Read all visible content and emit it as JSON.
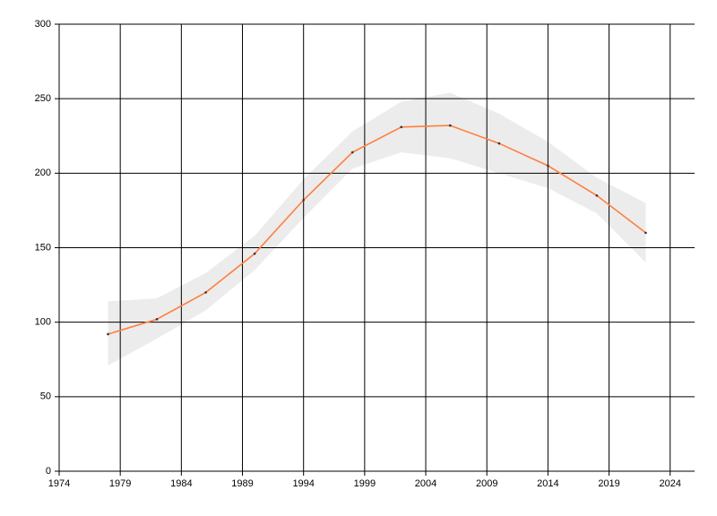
{
  "chart_data": {
    "type": "line",
    "x": [
      1978,
      1982,
      1986,
      1990,
      1994,
      1998,
      2002,
      2006,
      2010,
      2014,
      2018,
      2022
    ],
    "series": [
      {
        "color": "#ff7f3f",
        "values": [
          92,
          102,
          120,
          146,
          182,
          214,
          231,
          232,
          220,
          205,
          185,
          160
        ],
        "lower": [
          71,
          89,
          108,
          135,
          170,
          203,
          214,
          210,
          200,
          190,
          173,
          140
        ],
        "upper": [
          114,
          116,
          133,
          158,
          196,
          228,
          248,
          254,
          240,
          221,
          197,
          180
        ],
        "band_color": "#ececec",
        "marker_color": "#333333"
      }
    ],
    "xlim": [
      1974,
      2026
    ],
    "xticks": [
      1974,
      1979,
      1984,
      1989,
      1994,
      1999,
      2004,
      2009,
      2014,
      2019,
      2024
    ],
    "ylim": [
      0,
      300
    ],
    "yticks": [
      0,
      50,
      100,
      150,
      200,
      250,
      300
    ],
    "grid": true
  }
}
